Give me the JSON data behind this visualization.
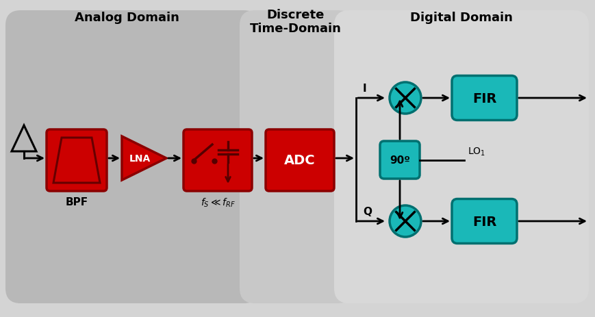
{
  "bg_color": "#d4d4d4",
  "analog_bg": "#b8b8b8",
  "discrete_bg": "#c8c8c8",
  "digital_bg": "#d8d8d8",
  "red_color": "#cc0000",
  "teal_color": "#1ab8b8",
  "dark_red": "#8b0000",
  "dark_teal": "#007070",
  "title_fontsize": 13,
  "analog_label": "Analog Domain",
  "discrete_label": "Discrete\nTime-Domain",
  "digital_label": "Digital Domain",
  "bpf_label": "BPF",
  "lna_label": "LNA",
  "adc_label": "ADC",
  "fir_label": "FIR",
  "ninety_label": "90º",
  "lo_label": "LO",
  "i_label": "I",
  "q_label": "Q",
  "fig_w": 8.7,
  "fig_h": 4.64
}
